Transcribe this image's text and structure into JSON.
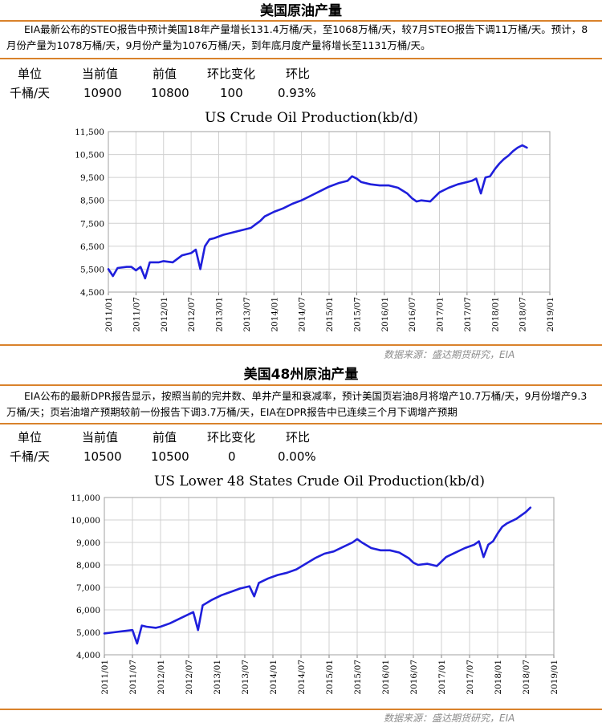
{
  "sections": [
    {
      "title": "美国原油产量",
      "desc": "EIA最新公布的STEO报告中预计美国18年产量增长131.4万桶/天，至1068万桶/天，较7月STEO报告下调11万桶/天。预计，8月份产量为1078万桶/天，9月份产量为1076万桶/天，到年底月度产量将增长至1131万桶/天。",
      "table": {
        "headers": [
          "单位",
          "当前值",
          "前值",
          "环比变化",
          "环比"
        ],
        "values": [
          "千桶/天",
          "10900",
          "10800",
          "100",
          "0.93%"
        ]
      },
      "source": "数据来源：盛达期货研究，EIA"
    },
    {
      "title": "美国48州原油产量",
      "desc": "EIA公布的最新DPR报告显示，按照当前的完井数、单井产量和衰减率，预计美国页岩油8月将增产10.7万桶/天，9月份增产9.3万桶/天；页岩油增产预期较前一份报告下调3.7万桶/天，EIA在DPR报告中已连续三个月下调增产预期",
      "table": {
        "headers": [
          "单位",
          "当前值",
          "前值",
          "环比变化",
          "环比"
        ],
        "values": [
          "千桶/天",
          "10500",
          "10500",
          "0",
          "0.00%"
        ]
      },
      "source": "数据来源：盛达期货研究，EIA"
    }
  ],
  "chart_data": [
    {
      "type": "line",
      "title": "US Crude Oil Production(kb/d)",
      "xlabel": "",
      "ylabel": "",
      "ylim": [
        4500,
        11500
      ],
      "yticks": [
        "4,500",
        "5,500",
        "6,500",
        "7,500",
        "8,500",
        "9,500",
        "10,500",
        "11,500"
      ],
      "xlim": [
        "2011-01",
        "2019-01"
      ],
      "xticks": [
        "2011/01",
        "2011/07",
        "2012/01",
        "2012/07",
        "2013/01",
        "2013/07",
        "2014/01",
        "2014/07",
        "2015/01",
        "2015/07",
        "2016/01",
        "2016/07",
        "2017/01",
        "2017/07",
        "2018/01",
        "2018/07",
        "2019/01"
      ],
      "grid": true,
      "line_color": "#1f1fdc",
      "series": [
        {
          "x": [
            "2011-01",
            "2011-02",
            "2011-03",
            "2011-05",
            "2011-06",
            "2011-07",
            "2011-08",
            "2011-09",
            "2011-10",
            "2011-12",
            "2012-01",
            "2012-03",
            "2012-05",
            "2012-07",
            "2012-08",
            "2012-09",
            "2012-10",
            "2012-11",
            "2012-12",
            "2013-02",
            "2013-04",
            "2013-06",
            "2013-08",
            "2013-09",
            "2013-10",
            "2013-11",
            "2014-01",
            "2014-03",
            "2014-05",
            "2014-07",
            "2014-09",
            "2014-11",
            "2015-01",
            "2015-03",
            "2015-05",
            "2015-06",
            "2015-07",
            "2015-08",
            "2015-10",
            "2015-12",
            "2016-02",
            "2016-04",
            "2016-06",
            "2016-07",
            "2016-08",
            "2016-09",
            "2016-11",
            "2017-01",
            "2017-03",
            "2017-05",
            "2017-07",
            "2017-08",
            "2017-09",
            "2017-10",
            "2017-11",
            "2017-12",
            "2018-01",
            "2018-02",
            "2018-03",
            "2018-04",
            "2018-05",
            "2018-06",
            "2018-07",
            "2018-08"
          ],
          "values": [
            5500,
            5200,
            5550,
            5600,
            5600,
            5450,
            5600,
            5100,
            5800,
            5800,
            5850,
            5800,
            6100,
            6200,
            6350,
            5500,
            6500,
            6800,
            6850,
            7000,
            7100,
            7200,
            7300,
            7450,
            7600,
            7800,
            8000,
            8150,
            8350,
            8500,
            8700,
            8900,
            9100,
            9250,
            9350,
            9550,
            9450,
            9300,
            9200,
            9150,
            9150,
            9050,
            8800,
            8600,
            8450,
            8500,
            8450,
            8850,
            9050,
            9200,
            9300,
            9350,
            9450,
            8800,
            9500,
            9550,
            9850,
            10100,
            10300,
            10450,
            10650,
            10800,
            10900,
            10800
          ]
        }
      ]
    },
    {
      "type": "line",
      "title": "US Lower 48 States Crude Oil Production(kb/d)",
      "xlabel": "",
      "ylabel": "",
      "ylim": [
        4000,
        11000
      ],
      "yticks": [
        "4,000",
        "5,000",
        "6,000",
        "7,000",
        "8,000",
        "9,000",
        "10,000",
        "11,000"
      ],
      "xlim": [
        "2011-01",
        "2019-01"
      ],
      "xticks": [
        "2011/01",
        "2011/07",
        "2012/01",
        "2012/07",
        "2013/01",
        "2013/07",
        "2014/01",
        "2014/07",
        "2015/01",
        "2015/07",
        "2016/01",
        "2016/07",
        "2017/01",
        "2017/07",
        "2018/01",
        "2018/07",
        "2019/01"
      ],
      "grid": true,
      "line_color": "#1f1fdc",
      "series": [
        {
          "x": [
            "2011-01",
            "2011-03",
            "2011-05",
            "2011-07",
            "2011-08",
            "2011-09",
            "2011-10",
            "2011-12",
            "2012-01",
            "2012-03",
            "2012-05",
            "2012-07",
            "2012-08",
            "2012-09",
            "2012-10",
            "2012-12",
            "2013-02",
            "2013-04",
            "2013-06",
            "2013-08",
            "2013-09",
            "2013-10",
            "2013-12",
            "2014-02",
            "2014-04",
            "2014-06",
            "2014-08",
            "2014-10",
            "2014-12",
            "2015-02",
            "2015-04",
            "2015-06",
            "2015-07",
            "2015-08",
            "2015-10",
            "2015-12",
            "2016-02",
            "2016-04",
            "2016-06",
            "2016-07",
            "2016-08",
            "2016-10",
            "2016-12",
            "2017-02",
            "2017-04",
            "2017-06",
            "2017-08",
            "2017-09",
            "2017-10",
            "2017-11",
            "2017-12",
            "2018-01",
            "2018-02",
            "2018-03",
            "2018-05",
            "2018-07",
            "2018-08"
          ],
          "values": [
            4950,
            5000,
            5050,
            5100,
            4500,
            5300,
            5250,
            5200,
            5250,
            5400,
            5600,
            5800,
            5900,
            5100,
            6200,
            6450,
            6650,
            6800,
            6950,
            7050,
            6600,
            7200,
            7400,
            7550,
            7650,
            7800,
            8050,
            8300,
            8500,
            8600,
            8800,
            9000,
            9150,
            9000,
            8750,
            8650,
            8650,
            8550,
            8300,
            8100,
            8000,
            8050,
            7950,
            8350,
            8550,
            8750,
            8900,
            9050,
            8350,
            8900,
            9050,
            9400,
            9700,
            9850,
            10050,
            10350,
            10550
          ]
        }
      ]
    }
  ]
}
